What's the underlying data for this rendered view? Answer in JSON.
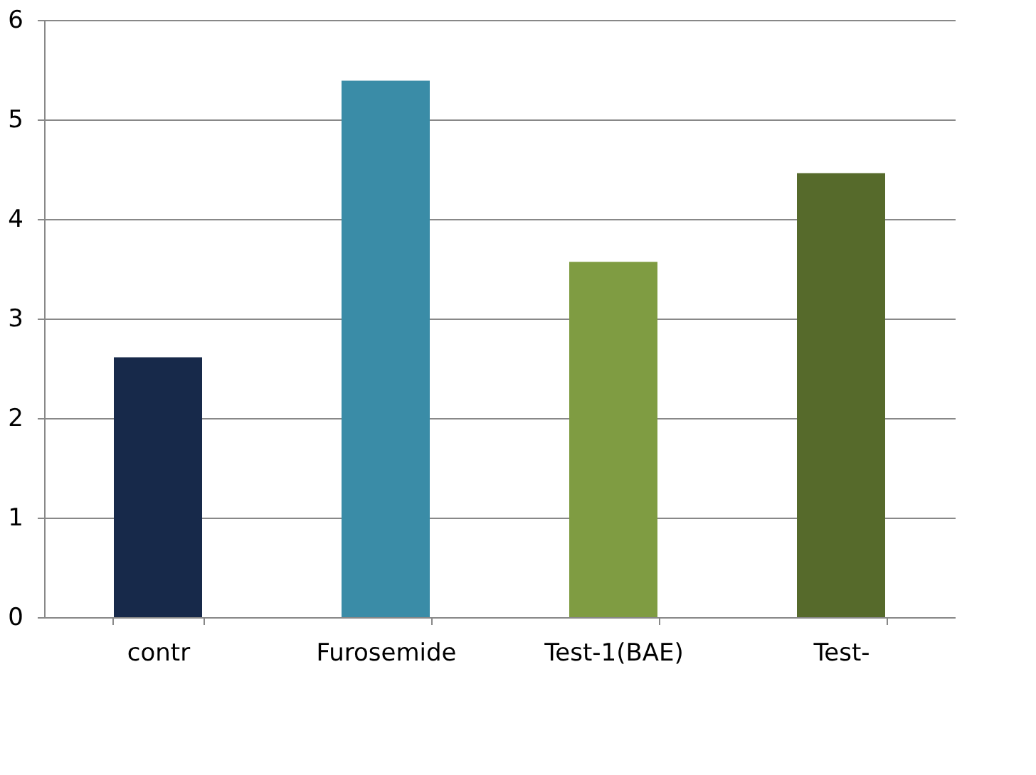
{
  "chart_data": {
    "type": "bar",
    "categories": [
      "contr",
      "Furosemide",
      "Test-1(BAE)",
      "Test-"
    ],
    "values": [
      2.61,
      5.39,
      3.57,
      4.46
    ],
    "colors": [
      "#17294a",
      "#3a8ca7",
      "#7f9c42",
      "#566a2b"
    ],
    "ylim": [
      0,
      6
    ],
    "yticks": [
      0,
      1,
      2,
      3,
      4,
      5,
      6
    ],
    "grid": "y"
  }
}
